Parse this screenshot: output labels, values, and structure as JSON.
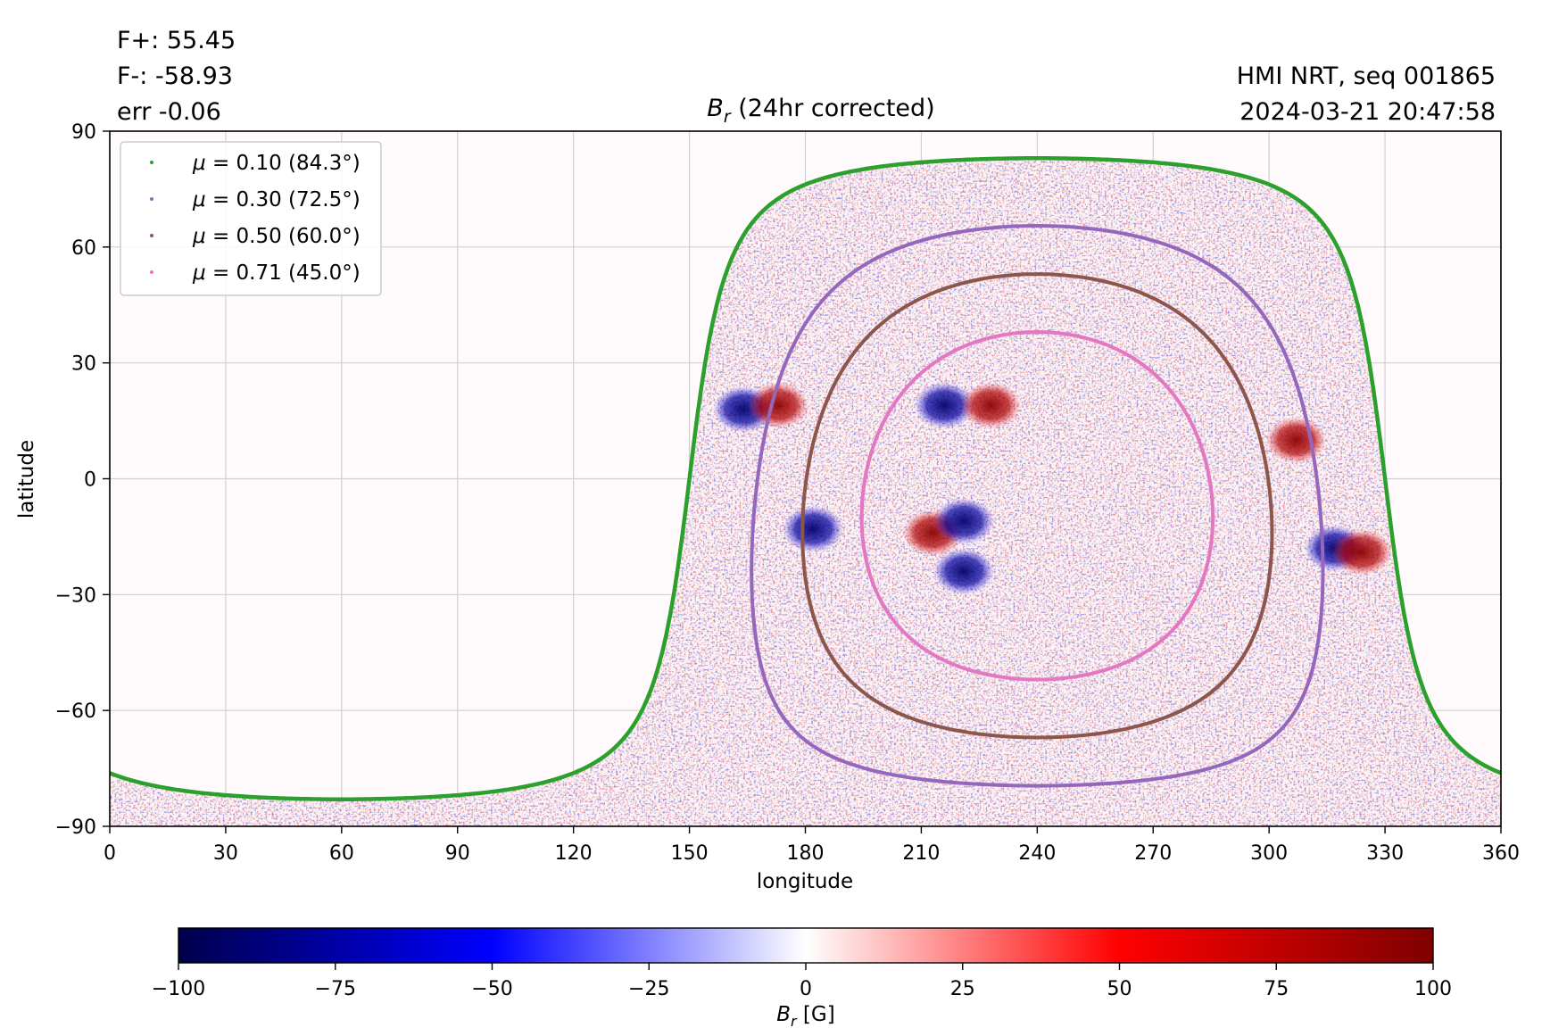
{
  "header": {
    "flux_pos": "F+: 55.45",
    "flux_neg": "F-: -58.93",
    "err": "err -0.06",
    "instrument": "HMI NRT, seq 001865",
    "timestamp": "2024-03-21 20:47:58"
  },
  "chart_data": {
    "type": "heatmap",
    "title_symbol": "B",
    "title_subscript": "r",
    "title_rest": " (24hr corrected)",
    "xlabel": "longitude",
    "ylabel": "latitude",
    "xlim": [
      0,
      360
    ],
    "ylim": [
      -90,
      90
    ],
    "xticks": [
      0,
      30,
      60,
      90,
      120,
      150,
      180,
      210,
      240,
      270,
      300,
      330,
      360
    ],
    "yticks": [
      -90,
      -60,
      -30,
      0,
      30,
      60,
      90
    ],
    "ytick_labels": [
      "−90",
      "−60",
      "−30",
      "0",
      "30",
      "60",
      "90"
    ],
    "grid": true,
    "disk_center": {
      "lon": 240,
      "lat": -7
    },
    "legend_position": "upper-left",
    "series": [
      {
        "name_prefix": "μ",
        "name_value": " = 0.10 (84.3°)",
        "mu": 0.1,
        "angle_deg": 84.3,
        "color": "#2ca02c"
      },
      {
        "name_prefix": "μ",
        "name_value": " = 0.30 (72.5°)",
        "mu": 0.3,
        "angle_deg": 72.5,
        "color": "#9467bd"
      },
      {
        "name_prefix": "μ",
        "name_value": " = 0.50 (60.0°)",
        "mu": 0.5,
        "angle_deg": 60.0,
        "color": "#8c564b"
      },
      {
        "name_prefix": "μ",
        "name_value": " = 0.71 (45.0°)",
        "mu": 0.71,
        "angle_deg": 45.0,
        "color": "#e377c2"
      }
    ],
    "active_regions": [
      {
        "lon": 164,
        "lat": 18,
        "polarity": -1
      },
      {
        "lon": 173,
        "lat": 19,
        "polarity": 1
      },
      {
        "lon": 216,
        "lat": 19,
        "polarity": -1
      },
      {
        "lon": 228,
        "lat": 19,
        "polarity": 1
      },
      {
        "lon": 213,
        "lat": -14,
        "polarity": 1
      },
      {
        "lon": 221,
        "lat": -11,
        "polarity": -1
      },
      {
        "lon": 182,
        "lat": -13,
        "polarity": -1
      },
      {
        "lon": 307,
        "lat": 10,
        "polarity": 1
      },
      {
        "lon": 317,
        "lat": -18,
        "polarity": -1
      },
      {
        "lon": 324,
        "lat": -19,
        "polarity": 1
      },
      {
        "lon": 221,
        "lat": -24,
        "polarity": -1
      }
    ],
    "colorbar": {
      "min": -100,
      "max": 100,
      "ticks": [
        -100,
        -75,
        -50,
        -25,
        0,
        25,
        50,
        75,
        100
      ],
      "tick_labels": [
        "−100",
        "−75",
        "−50",
        "−25",
        "0",
        "25",
        "50",
        "75",
        "100"
      ],
      "label_symbol": "B",
      "label_subscript": "r",
      "label_unit": " [G]",
      "colormap": "seismic"
    }
  }
}
